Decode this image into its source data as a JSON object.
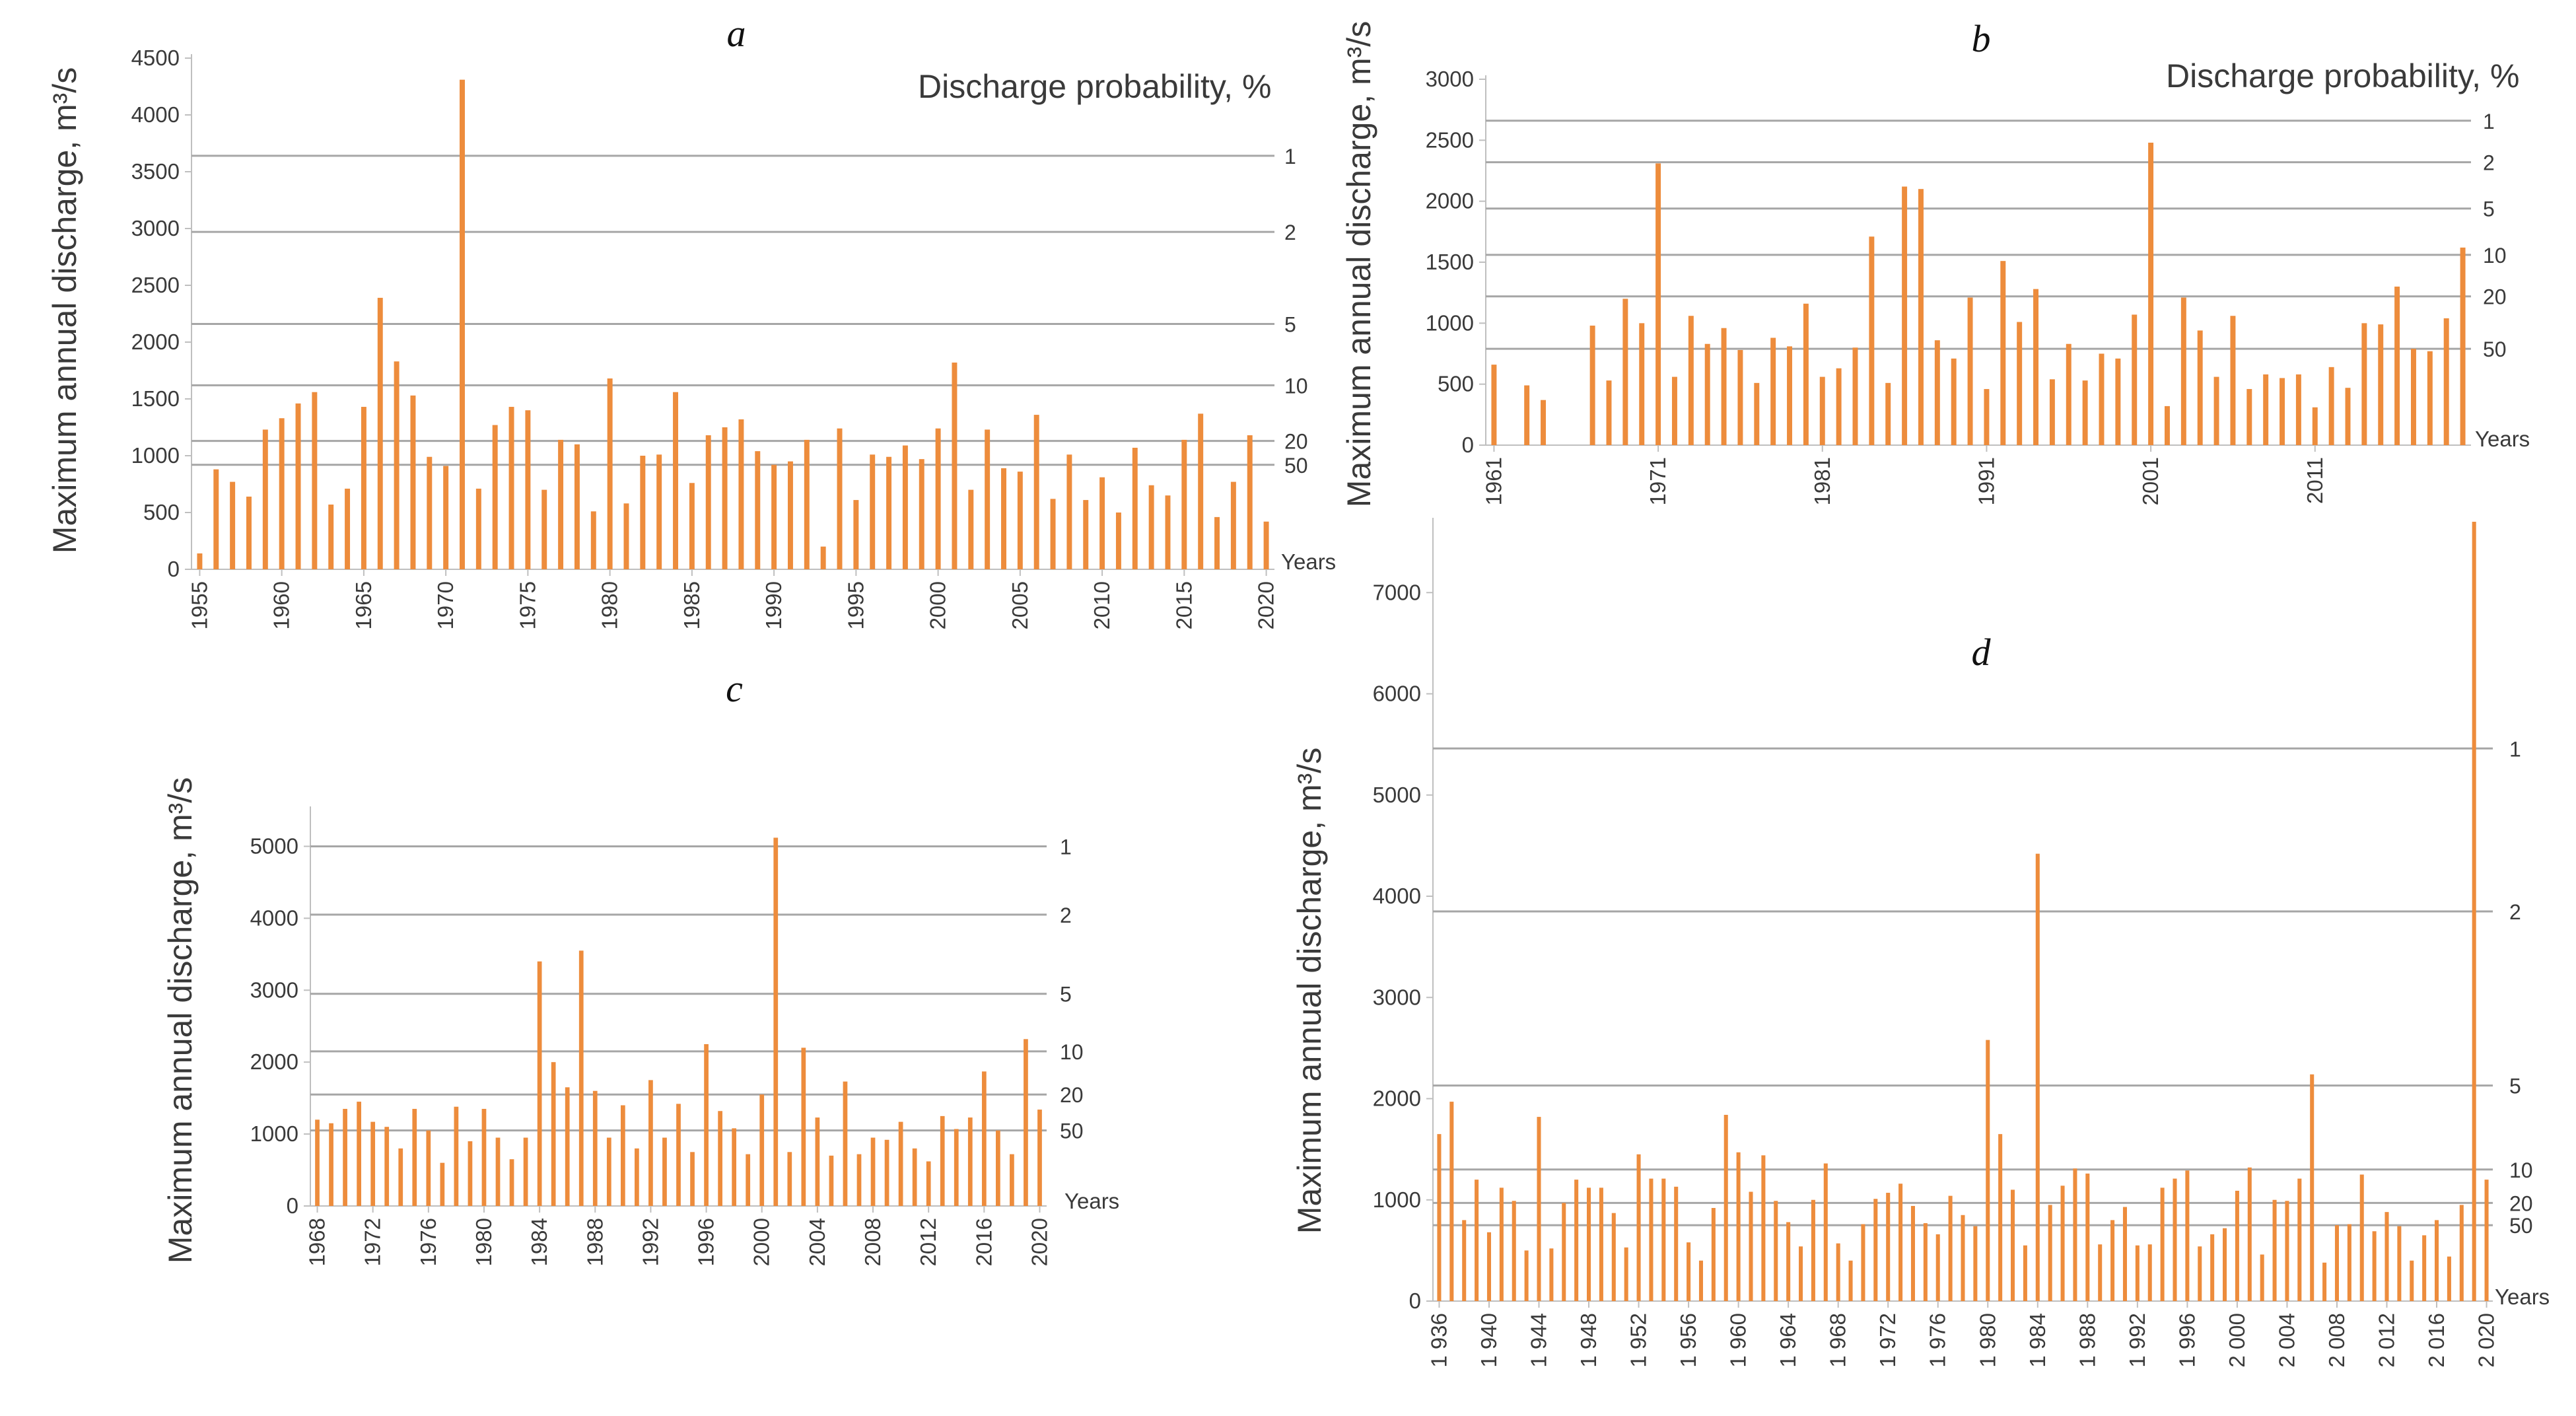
{
  "chart_data": [
    {
      "type": "bar",
      "panel_label": "a",
      "ylabel": "Maximum annual discharge, m³/s",
      "xlabel": "Years",
      "right_title": "Discharge probability, %",
      "x_start": 1955,
      "x_end": 2020,
      "x_ticks": [
        1955,
        1960,
        1965,
        1970,
        1975,
        1980,
        1985,
        1990,
        1995,
        2000,
        2005,
        2010,
        2015,
        2020
      ],
      "y_ticks": [
        0,
        500,
        1000,
        1500,
        2000,
        2500,
        3000,
        3500,
        4000,
        4500
      ],
      "ylim": [
        0,
        4500
      ],
      "bar_color": "#ed8c3c",
      "values": [
        140,
        880,
        770,
        640,
        1230,
        1330,
        1460,
        1560,
        570,
        710,
        1430,
        2390,
        1830,
        1530,
        990,
        910,
        4310,
        710,
        1270,
        1430,
        1400,
        700,
        1140,
        1100,
        510,
        1680,
        580,
        1000,
        1010,
        1560,
        760,
        1180,
        1250,
        1320,
        1040,
        920,
        950,
        1140,
        200,
        1240,
        610,
        1010,
        990,
        1090,
        970,
        1240,
        1820,
        700,
        1230,
        890,
        860,
        1360,
        620,
        1010,
        610,
        810,
        500,
        1070,
        740,
        650,
        1140,
        1370,
        460,
        770,
        1180,
        420
      ],
      "probability_lines": [
        {
          "value": 3640,
          "label": "1"
        },
        {
          "value": 2970,
          "label": "2"
        },
        {
          "value": 2160,
          "label": "5"
        },
        {
          "value": 1620,
          "label": "10"
        },
        {
          "value": 1130,
          "label": "20"
        },
        {
          "value": 920,
          "label": "50"
        }
      ]
    },
    {
      "type": "bar",
      "panel_label": "b",
      "ylabel": "Maximum annual discharge, m³/s",
      "xlabel": "Years",
      "right_title": "Discharge probability, %",
      "x_start": 1961,
      "x_end": 2020,
      "x_ticks": [
        1961,
        1971,
        1981,
        1991,
        2001,
        2011
      ],
      "y_ticks": [
        0,
        500,
        1000,
        1500,
        2000,
        2500,
        3000
      ],
      "ylim": [
        0,
        3000
      ],
      "bar_color": "#ed8c3c",
      "values": [
        660,
        0,
        490,
        370,
        0,
        0,
        980,
        530,
        1200,
        1000,
        2310,
        560,
        1060,
        830,
        960,
        780,
        510,
        880,
        810,
        1160,
        560,
        630,
        800,
        1710,
        510,
        2120,
        2100,
        860,
        710,
        1210,
        460,
        1510,
        1010,
        1280,
        540,
        830,
        530,
        750,
        710,
        1070,
        2480,
        320,
        1210,
        940,
        560,
        1060,
        460,
        580,
        550,
        580,
        310,
        640,
        470,
        1000,
        990,
        1300,
        790,
        770,
        1040,
        1620
      ],
      "probability_lines": [
        {
          "value": 2660,
          "label": "1"
        },
        {
          "value": 2320,
          "label": "2"
        },
        {
          "value": 1940,
          "label": "5"
        },
        {
          "value": 1560,
          "label": "10"
        },
        {
          "value": 1220,
          "label": "20"
        },
        {
          "value": 790,
          "label": "50"
        }
      ]
    },
    {
      "type": "bar",
      "panel_label": "c",
      "ylabel": "Maximum annual discharge, m³/s",
      "xlabel": "Years",
      "x_start": 1968,
      "x_end": 2020,
      "x_ticks": [
        1968,
        1972,
        1976,
        1980,
        1984,
        1988,
        1992,
        1996,
        2000,
        2004,
        2008,
        2012,
        2016,
        2020
      ],
      "y_ticks": [
        0,
        1000,
        2000,
        3000,
        4000,
        5000
      ],
      "ylim": [
        0,
        5500
      ],
      "bar_color": "#ed8c3c",
      "values": [
        1200,
        1150,
        1350,
        1450,
        1170,
        1100,
        800,
        1350,
        1050,
        600,
        1380,
        900,
        1350,
        950,
        650,
        950,
        3400,
        2000,
        1650,
        3550,
        1600,
        950,
        1400,
        800,
        1750,
        950,
        1420,
        750,
        2250,
        1320,
        1080,
        720,
        1550,
        5120,
        750,
        2200,
        1230,
        700,
        1730,
        720,
        950,
        920,
        1170,
        800,
        620,
        1250,
        1070,
        1230,
        1870,
        1050,
        720,
        2320,
        1340
      ],
      "probability_lines": [
        {
          "value": 5000,
          "label": "1"
        },
        {
          "value": 4050,
          "label": "2"
        },
        {
          "value": 2950,
          "label": "5"
        },
        {
          "value": 2150,
          "label": "10"
        },
        {
          "value": 1550,
          "label": "20"
        },
        {
          "value": 1050,
          "label": "50"
        }
      ]
    },
    {
      "type": "bar",
      "panel_label": "d",
      "ylabel": "Maximum annual discharge, m³/s",
      "xlabel": "Years",
      "x_start": 1936,
      "x_end": 2020,
      "x_ticks": [
        "1 936",
        "1 940",
        "1 944",
        "1 948",
        "1 952",
        "1 956",
        "1 960",
        "1 964",
        "1 968",
        "1 972",
        "1 976",
        "1 980",
        "1 984",
        "1 988",
        "1 992",
        "1 996",
        "2 000",
        "2 004",
        "2 008",
        "2 012",
        "2 016",
        "2 020"
      ],
      "x_tick_years": [
        1936,
        1940,
        1944,
        1948,
        1952,
        1956,
        1960,
        1964,
        1968,
        1972,
        1976,
        1980,
        1984,
        1988,
        1992,
        1996,
        2000,
        2004,
        2008,
        2012,
        2016,
        2020
      ],
      "y_ticks": [
        0,
        1000,
        2000,
        3000,
        4000,
        5000,
        6000,
        7000
      ],
      "ylim": [
        0,
        7700
      ],
      "bar_color": "#ed8c3c",
      "values": [
        1650,
        1970,
        800,
        1200,
        680,
        1120,
        990,
        500,
        1820,
        520,
        970,
        1200,
        1120,
        1120,
        870,
        530,
        1450,
        1210,
        1210,
        1130,
        580,
        400,
        920,
        1840,
        1470,
        1080,
        1440,
        990,
        780,
        540,
        1000,
        1360,
        570,
        400,
        760,
        1010,
        1070,
        1160,
        940,
        770,
        660,
        1040,
        850,
        740,
        2580,
        1650,
        1100,
        550,
        4420,
        950,
        1140,
        1310,
        1260,
        560,
        800,
        930,
        550,
        560,
        1120,
        1210,
        1290,
        540,
        660,
        720,
        1090,
        1320,
        460,
        1000,
        990,
        1210,
        2240,
        380,
        750,
        760,
        1250,
        690,
        880,
        740,
        400,
        650,
        800,
        440,
        950,
        7700,
        1200
      ],
      "probability_lines": [
        {
          "value": 5460,
          "label": "1"
        },
        {
          "value": 3850,
          "label": "2"
        },
        {
          "value": 2130,
          "label": "5"
        },
        {
          "value": 1300,
          "label": "10"
        },
        {
          "value": 970,
          "label": "20"
        },
        {
          "value": 750,
          "label": "50"
        }
      ]
    }
  ]
}
